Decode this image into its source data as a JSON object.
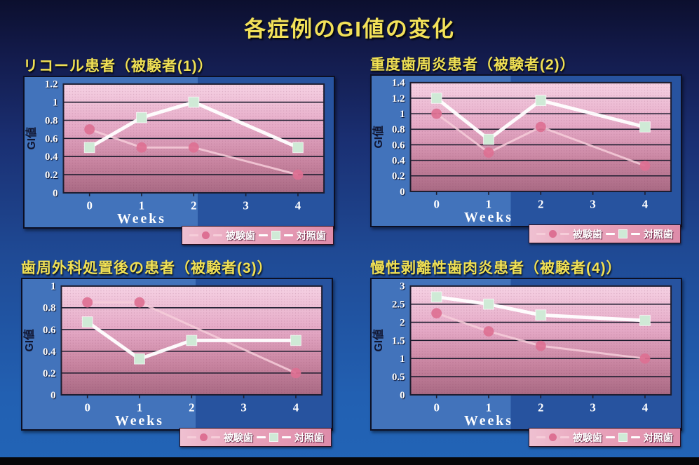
{
  "slide": {
    "title": "各症例のGI値の変化"
  },
  "colors": {
    "background_top": "#0c0f2e",
    "background_bottom": "#2264b6",
    "title_yellow": "#f2e159",
    "panel_light": "#4273bb",
    "panel_dark": "#27539f",
    "plot_top": "#f6d2e4",
    "plot_mid1": "#e5a9c6",
    "plot_mid2": "#c884a0",
    "plot_bottom": "#a96a84",
    "grid": "#1c1c2e",
    "test_marker": "#dd7093",
    "test_line": "#f6cdd9",
    "control_marker": "#cfead6",
    "control_line": "#ffffff",
    "legend_bg": "#e8a2ba",
    "tick_text": "#ffffff",
    "ylabel_text": "#10142e"
  },
  "chart_data": [
    {
      "type": "line",
      "title": "リコール患者（被験者(1)）",
      "xlabel": "Weeks",
      "ylabel": "GI値",
      "xticks": [
        "0",
        "1",
        "2",
        "3",
        "4"
      ],
      "ylim": [
        0,
        1.2
      ],
      "yticks": [
        0,
        0.2,
        0.4,
        0.6,
        0.8,
        1,
        1.2
      ],
      "grid": true,
      "legend_position": "below-right",
      "series": [
        {
          "name": "被験歯",
          "role": "test",
          "marker": "circle",
          "points": [
            [
              0,
              0.7
            ],
            [
              1,
              0.5
            ],
            [
              2,
              0.5
            ],
            [
              4,
              0.2
            ]
          ]
        },
        {
          "name": "対照歯",
          "role": "control",
          "marker": "square",
          "points": [
            [
              0,
              0.5
            ],
            [
              1,
              0.83
            ],
            [
              2,
              1.0
            ],
            [
              4,
              0.5
            ]
          ]
        }
      ]
    },
    {
      "type": "line",
      "title": "重度歯周炎患者（被験者(2)）",
      "xlabel": "Weeks",
      "ylabel": "GI値",
      "xticks": [
        "0",
        "1",
        "2",
        "3",
        "4"
      ],
      "ylim": [
        0,
        1.4
      ],
      "yticks": [
        0,
        0.2,
        0.4,
        0.6,
        0.8,
        1,
        1.2,
        1.4
      ],
      "grid": true,
      "legend_position": "below-right",
      "series": [
        {
          "name": "被験歯",
          "role": "test",
          "marker": "circle",
          "points": [
            [
              0,
              1.0
            ],
            [
              1,
              0.5
            ],
            [
              2,
              0.83
            ],
            [
              4,
              0.33
            ]
          ]
        },
        {
          "name": "対照歯",
          "role": "control",
          "marker": "square",
          "points": [
            [
              0,
              1.2
            ],
            [
              1,
              0.67
            ],
            [
              2,
              1.17
            ],
            [
              4,
              0.83
            ]
          ]
        }
      ]
    },
    {
      "type": "line",
      "title": "歯周外科処置後の患者（被験者(3)）",
      "xlabel": "Weeks",
      "ylabel": "GI値",
      "xticks": [
        "0",
        "1",
        "2",
        "3",
        "4"
      ],
      "ylim": [
        0,
        1.0
      ],
      "yticks": [
        0,
        0.2,
        0.4,
        0.6,
        0.8,
        1
      ],
      "grid": true,
      "legend_position": "below-right",
      "series": [
        {
          "name": "被験歯",
          "role": "test",
          "marker": "circle",
          "points": [
            [
              0,
              0.85
            ],
            [
              1,
              0.85
            ],
            [
              4,
              0.2
            ]
          ]
        },
        {
          "name": "対照歯",
          "role": "control",
          "marker": "square",
          "points": [
            [
              0,
              0.67
            ],
            [
              1,
              0.33
            ],
            [
              2,
              0.5
            ],
            [
              4,
              0.5
            ]
          ]
        }
      ]
    },
    {
      "type": "line",
      "title": "慢性剥離性歯肉炎患者（被験者(4)）",
      "xlabel": "Weeks",
      "ylabel": "GI値",
      "xticks": [
        "0",
        "1",
        "2",
        "3",
        "4"
      ],
      "ylim": [
        0,
        3.0
      ],
      "yticks": [
        0,
        0.5,
        1,
        1.5,
        2,
        2.5,
        3
      ],
      "grid": true,
      "legend_position": "below-right",
      "series": [
        {
          "name": "被験歯",
          "role": "test",
          "marker": "circle",
          "points": [
            [
              0,
              2.25
            ],
            [
              1,
              1.75
            ],
            [
              2,
              1.35
            ],
            [
              4,
              1.0
            ]
          ]
        },
        {
          "name": "対照歯",
          "role": "control",
          "marker": "square",
          "points": [
            [
              0,
              2.7
            ],
            [
              1,
              2.5
            ],
            [
              2,
              2.2
            ],
            [
              4,
              2.05
            ]
          ]
        }
      ]
    }
  ]
}
